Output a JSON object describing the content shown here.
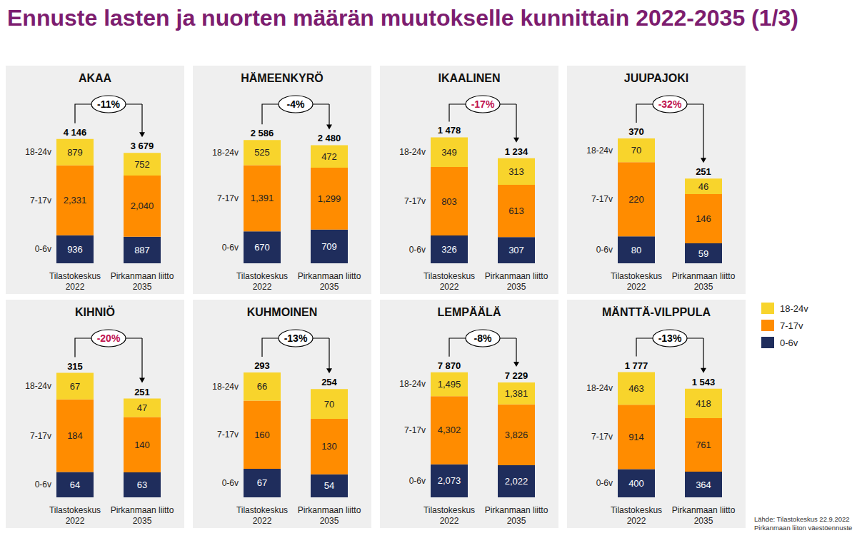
{
  "title": "Ennuste lasten ja nuorten määrän muutokselle kunnittain 2022-2035 (1/3)",
  "legend": "right",
  "source": [
    "Lähde: Tilastokeskus 22.9.2022",
    "Pirkanmaan liiton väestöennuste"
  ],
  "chart_data": [
    {
      "type": "bar",
      "title": "AKAA",
      "stacked": true,
      "data_labels": true,
      "tick_labels": "x",
      "categories": [
        "Tilastokeskus 2022",
        "Pirkanmaan liitto 2035"
      ],
      "ylim": [
        0,
        5400
      ],
      "series": [
        {
          "name": "0-6v",
          "color": "#1f2d5c",
          "values": [
            936,
            887
          ]
        },
        {
          "name": "7-17v",
          "color": "#ff8c00",
          "values": [
            2331,
            2040
          ],
          "value_labels": [
            "2,331",
            "2,040"
          ]
        },
        {
          "name": "18-24v",
          "color": "#f8d42c",
          "values": [
            879,
            752
          ]
        }
      ],
      "totals": {
        "values": [
          4146,
          3679
        ],
        "value_labels": [
          "4 146",
          "3 679"
        ]
      },
      "change": {
        "value": -11,
        "label": "-11%",
        "color": "#000000"
      }
    },
    {
      "type": "bar",
      "title": "HÄMEENKYRÖ",
      "stacked": true,
      "data_labels": true,
      "tick_labels": "x",
      "categories": [
        "Tilastokeskus 2022",
        "Pirkanmaan liitto 2035"
      ],
      "ylim": [
        0,
        3400
      ],
      "series": [
        {
          "name": "0-6v",
          "color": "#1f2d5c",
          "values": [
            670,
            709
          ]
        },
        {
          "name": "7-17v",
          "color": "#ff8c00",
          "values": [
            1391,
            1299
          ],
          "value_labels": [
            "1,391",
            "1,299"
          ]
        },
        {
          "name": "18-24v",
          "color": "#f8d42c",
          "values": [
            525,
            472
          ]
        }
      ],
      "totals": {
        "values": [
          2586,
          2480
        ],
        "value_labels": [
          "2 586",
          "2 480"
        ]
      },
      "change": {
        "value": -4,
        "label": "-4%",
        "color": "#000000"
      }
    },
    {
      "type": "bar",
      "title": "IKAALINEN",
      "stacked": true,
      "data_labels": true,
      "tick_labels": "x",
      "categories": [
        "Tilastokeskus 2022",
        "Pirkanmaan liitto 2035"
      ],
      "ylim": [
        0,
        1900
      ],
      "series": [
        {
          "name": "0-6v",
          "color": "#1f2d5c",
          "values": [
            326,
            307
          ]
        },
        {
          "name": "7-17v",
          "color": "#ff8c00",
          "values": [
            803,
            613
          ]
        },
        {
          "name": "18-24v",
          "color": "#f8d42c",
          "values": [
            349,
            313
          ]
        }
      ],
      "totals": {
        "values": [
          1478,
          1234
        ],
        "value_labels": [
          "1 478",
          "1 234"
        ]
      },
      "change": {
        "value": -17,
        "label": "-17%",
        "color": "#c0134f"
      }
    },
    {
      "type": "bar",
      "title": "JUUPAJOKI",
      "stacked": true,
      "data_labels": true,
      "tick_labels": "x",
      "categories": [
        "Tilastokeskus 2022",
        "Pirkanmaan liitto 2035"
      ],
      "ylim": [
        0,
        480
      ],
      "series": [
        {
          "name": "0-6v",
          "color": "#1f2d5c",
          "values": [
            80,
            59
          ]
        },
        {
          "name": "7-17v",
          "color": "#ff8c00",
          "values": [
            220,
            146
          ]
        },
        {
          "name": "18-24v",
          "color": "#f8d42c",
          "values": [
            70,
            46
          ]
        }
      ],
      "totals": {
        "values": [
          370,
          251
        ]
      },
      "change": {
        "value": -32,
        "label": "-32%",
        "color": "#c0134f"
      }
    },
    {
      "type": "bar",
      "title": "KIHNIÖ",
      "stacked": true,
      "data_labels": true,
      "tick_labels": "x",
      "categories": [
        "Tilastokeskus 2022",
        "Pirkanmaan liitto 2035"
      ],
      "ylim": [
        0,
        410
      ],
      "series": [
        {
          "name": "0-6v",
          "color": "#1f2d5c",
          "values": [
            64,
            63
          ]
        },
        {
          "name": "7-17v",
          "color": "#ff8c00",
          "values": [
            184,
            140
          ]
        },
        {
          "name": "18-24v",
          "color": "#f8d42c",
          "values": [
            67,
            47
          ]
        }
      ],
      "totals": {
        "values": [
          315,
          251
        ]
      },
      "change": {
        "value": -20,
        "label": "-20%",
        "color": "#c0134f"
      }
    },
    {
      "type": "bar",
      "title": "KUHMOINEN",
      "stacked": true,
      "data_labels": true,
      "tick_labels": "x",
      "categories": [
        "Tilastokeskus 2022",
        "Pirkanmaan liitto 2035"
      ],
      "ylim": [
        0,
        380
      ],
      "series": [
        {
          "name": "0-6v",
          "color": "#1f2d5c",
          "values": [
            67,
            54
          ]
        },
        {
          "name": "7-17v",
          "color": "#ff8c00",
          "values": [
            160,
            130
          ]
        },
        {
          "name": "18-24v",
          "color": "#f8d42c",
          "values": [
            66,
            70
          ]
        }
      ],
      "totals": {
        "values": [
          293,
          254
        ]
      },
      "change": {
        "value": -13,
        "label": "-13%",
        "color": "#000000"
      }
    },
    {
      "type": "bar",
      "title": "LEMPÄÄLÄ",
      "stacked": true,
      "data_labels": true,
      "tick_labels": "x",
      "categories": [
        "Tilastokeskus 2022",
        "Pirkanmaan liitto 2035"
      ],
      "ylim": [
        0,
        10200
      ],
      "series": [
        {
          "name": "0-6v",
          "color": "#1f2d5c",
          "values": [
            2073,
            2022
          ],
          "value_labels": [
            "2,073",
            "2,022"
          ]
        },
        {
          "name": "7-17v",
          "color": "#ff8c00",
          "values": [
            4302,
            3826
          ],
          "value_labels": [
            "4,302",
            "3,826"
          ]
        },
        {
          "name": "18-24v",
          "color": "#f8d42c",
          "values": [
            1495,
            1381
          ],
          "value_labels": [
            "1,495",
            "1,381"
          ]
        }
      ],
      "totals": {
        "values": [
          7870,
          7229
        ],
        "value_labels": [
          "7 870",
          "7 229"
        ]
      },
      "change": {
        "value": -8,
        "label": "-8%",
        "color": "#000000"
      }
    },
    {
      "type": "bar",
      "title": "MÄNTTÄ-VILPPULA",
      "stacked": true,
      "data_labels": true,
      "tick_labels": "x",
      "categories": [
        "Tilastokeskus 2022",
        "Pirkanmaan liitto 2035"
      ],
      "ylim": [
        0,
        2300
      ],
      "series": [
        {
          "name": "0-6v",
          "color": "#1f2d5c",
          "values": [
            400,
            364
          ]
        },
        {
          "name": "7-17v",
          "color": "#ff8c00",
          "values": [
            914,
            761
          ]
        },
        {
          "name": "18-24v",
          "color": "#f8d42c",
          "values": [
            463,
            418
          ]
        }
      ],
      "totals": {
        "values": [
          1777,
          1543
        ],
        "value_labels": [
          "1 777",
          "1 543"
        ]
      },
      "change": {
        "value": -13,
        "label": "-13%",
        "color": "#000000"
      }
    }
  ]
}
